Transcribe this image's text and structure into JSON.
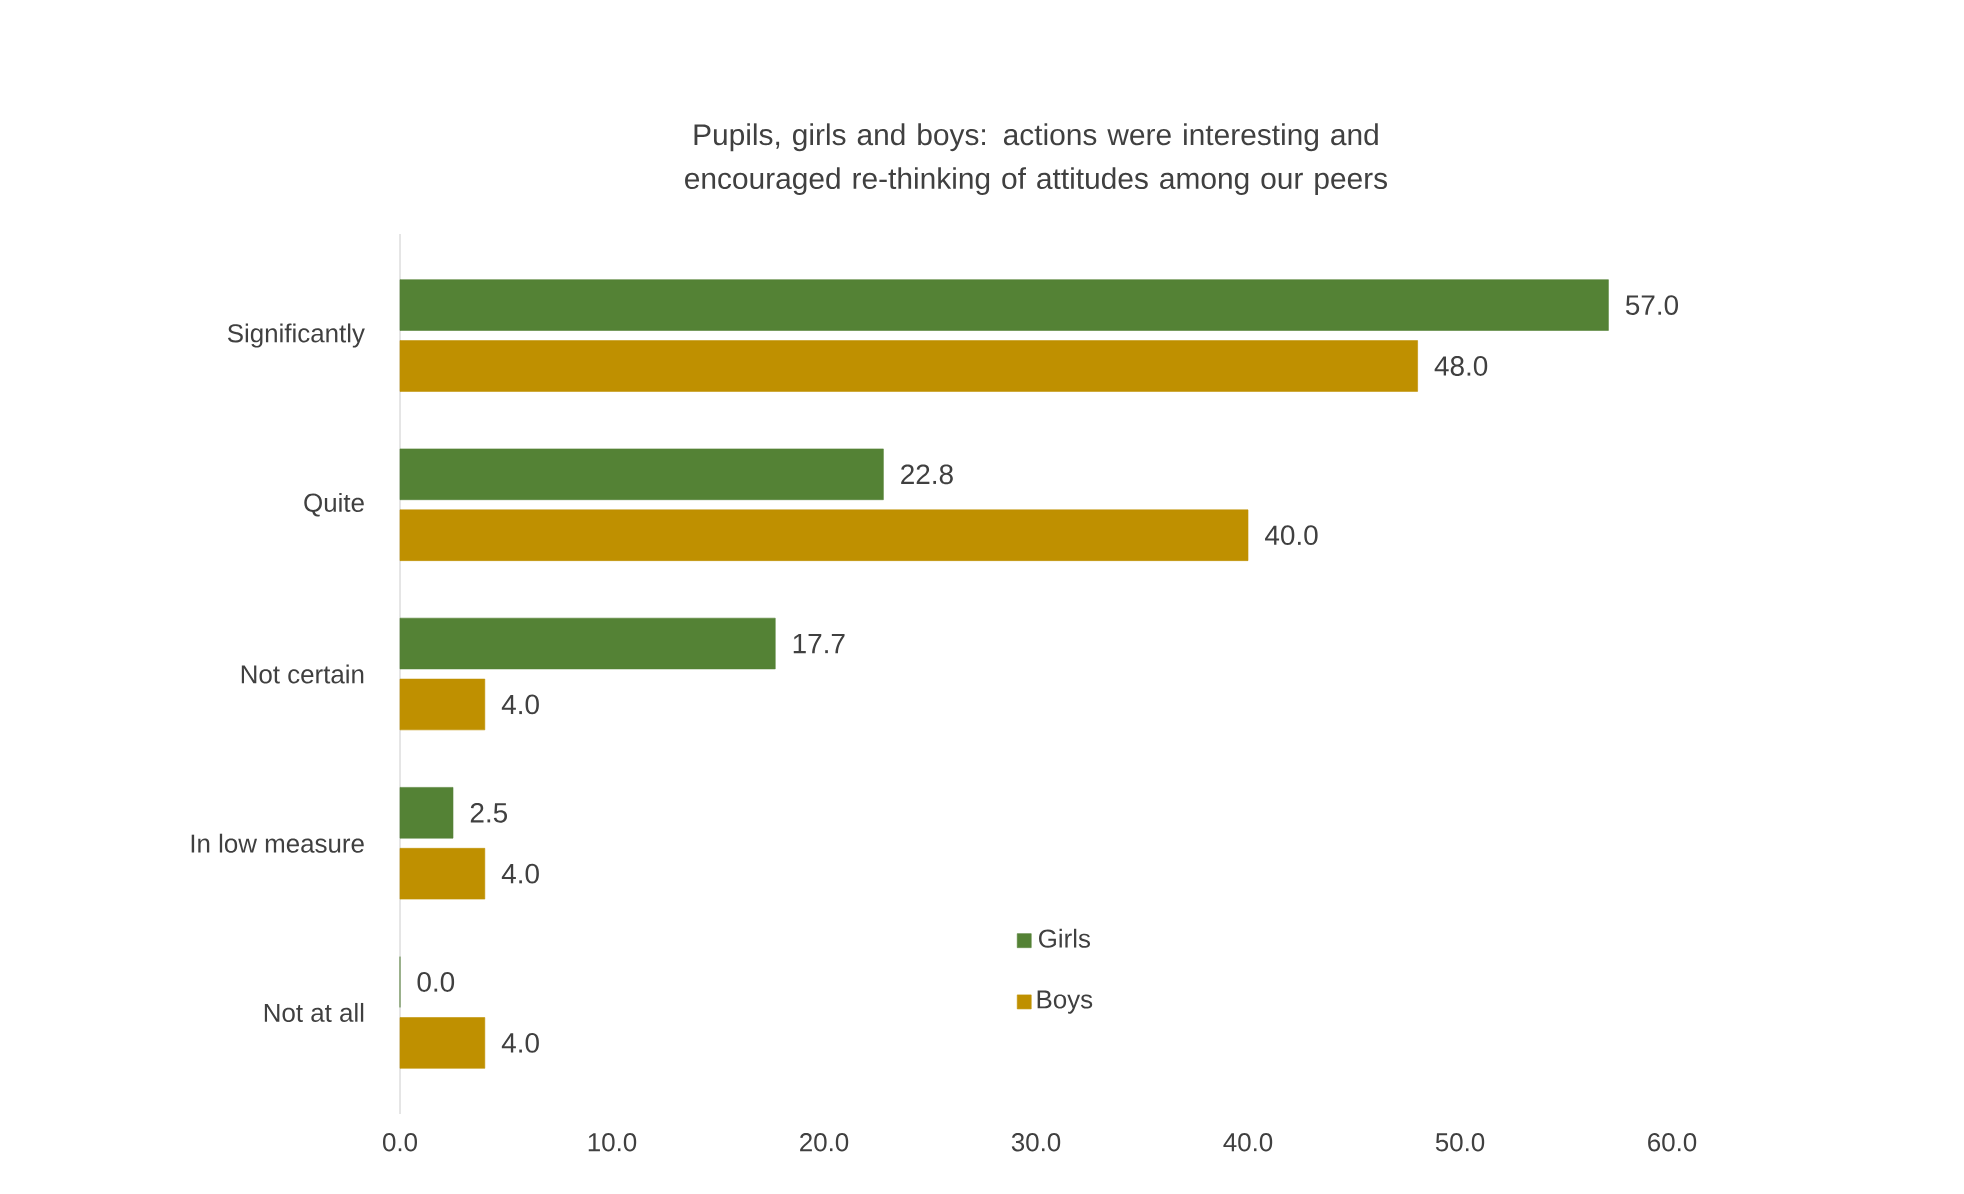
{
  "chart_data": {
    "type": "bar",
    "orientation": "horizontal",
    "title": "Pupils, girls and boys: actions were interesting and encouraged re-thinking of attitudes among our peers",
    "categories": [
      "Significantly",
      "Quite",
      "Not certain",
      "In low measure",
      "Not at all"
    ],
    "series": [
      {
        "name": "Girls",
        "color": "#548235",
        "values": [
          57.0,
          22.8,
          17.7,
          2.5,
          0.0
        ],
        "value_labels": [
          "57.0",
          "22.8",
          "17.7",
          "2.5",
          "0.0"
        ]
      },
      {
        "name": "Boys",
        "color": "#bf9000",
        "values": [
          48.0,
          40.0,
          4.0,
          4.0,
          4.0
        ],
        "value_labels": [
          "48.0",
          "40.0",
          "4.0",
          "4.0",
          "4.0"
        ]
      }
    ],
    "xlim": [
      0,
      60
    ],
    "xticks": [
      {
        "value": 0,
        "label": "0.0"
      },
      {
        "value": 10,
        "label": "10.0"
      },
      {
        "value": 20,
        "label": "20.0"
      },
      {
        "value": 30,
        "label": "30.0"
      },
      {
        "value": 40,
        "label": "40.0"
      },
      {
        "value": 50,
        "label": "50.0"
      },
      {
        "value": 60,
        "label": "60.0"
      }
    ],
    "grid": false,
    "legend": "bottom"
  }
}
